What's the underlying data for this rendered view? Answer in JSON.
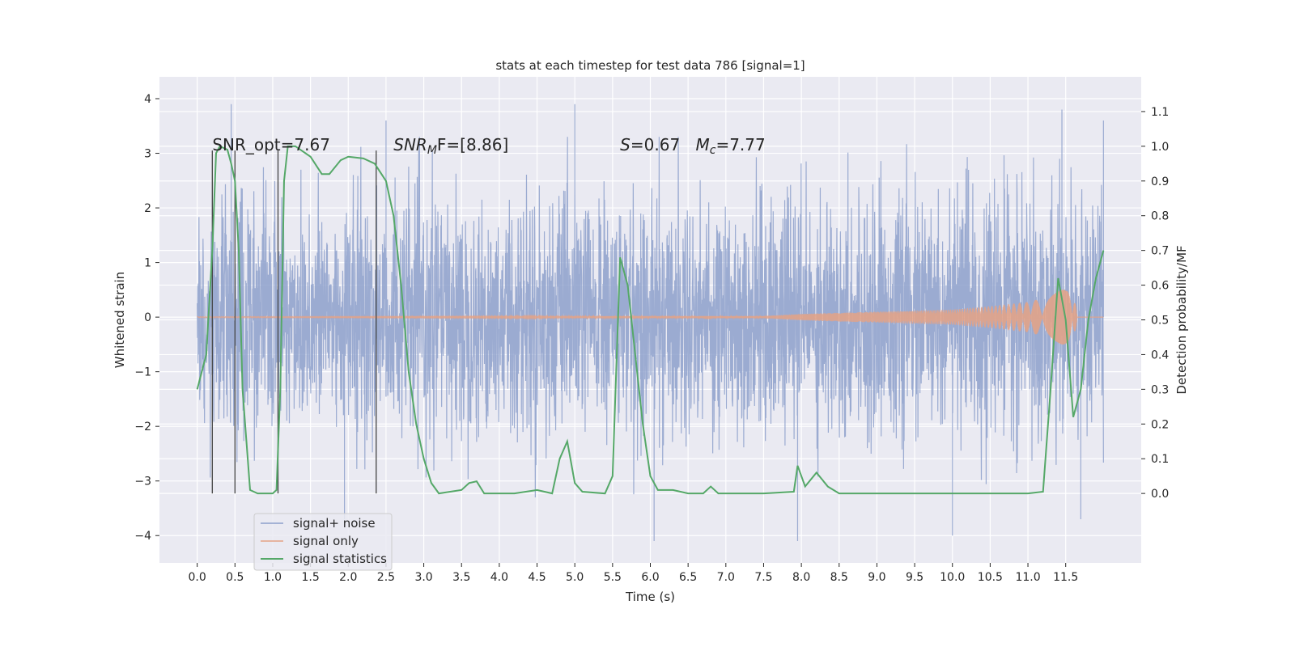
{
  "chart_data": {
    "type": "line",
    "title": "stats at each timestep for test data 786 [signal=1]",
    "xlabel": "Time (s)",
    "ylabel": "Whitened strain",
    "ylabel_right": "Detection probability/MF",
    "xlim": [
      -0.5,
      12.5
    ],
    "ylim": [
      -4.5,
      4.4
    ],
    "ylim_right": [
      -0.2,
      1.2
    ],
    "x_ticks": [
      "0.0",
      "0.5",
      "1.0",
      "1.5",
      "2.0",
      "2.5",
      "3.0",
      "3.5",
      "4.0",
      "4.5",
      "5.0",
      "5.5",
      "6.0",
      "6.5",
      "7.0",
      "7.5",
      "8.0",
      "8.5",
      "9.0",
      "9.5",
      "10.0",
      "10.5",
      "11.0",
      "11.5"
    ],
    "y_ticks": [
      "−4",
      "−3",
      "−2",
      "−1",
      "0",
      "1",
      "2",
      "3",
      "4"
    ],
    "y_ticks_right": [
      "0.0",
      "0.1",
      "0.2",
      "0.3",
      "0.4",
      "0.5",
      "0.6",
      "0.7",
      "0.8",
      "0.9",
      "1.0",
      "1.1"
    ],
    "grid": true,
    "legend_position": "lower-left",
    "annotations": {
      "snr_opt": "SNR_opt=7.67",
      "snr_mf_main": "SNR",
      "snr_mf_sub": "M",
      "snr_mf_rest": "F=[8.86]",
      "s_main": "S",
      "s_rest": "=0.67",
      "mc_main": "M",
      "mc_sub": "c",
      "mc_rest": "=7.77"
    },
    "vertical_markers_x": [
      0.2,
      0.5,
      1.07,
      2.37
    ],
    "series": [
      {
        "name": "signal+ noise",
        "color": "#8da0cb",
        "axis": "left",
        "bulk_envelope": [
          -1.8,
          1.8
        ],
        "notable_peaks": [
          [
            0.45,
            3.9
          ],
          [
            2.5,
            3.6
          ],
          [
            5.0,
            3.9
          ],
          [
            11.45,
            3.8
          ],
          [
            12.0,
            3.6
          ],
          [
            6.05,
            -4.1
          ],
          [
            7.95,
            -4.1
          ],
          [
            1.95,
            -3.7
          ],
          [
            10.0,
            -4.0
          ],
          [
            11.7,
            -3.7
          ]
        ],
        "x_range": [
          0.0,
          12.0
        ]
      },
      {
        "name": "signal only",
        "color": "#e5a285",
        "axis": "left",
        "envelope": [
          [
            0.0,
            0.01
          ],
          [
            7.5,
            0.02
          ],
          [
            8.0,
            0.06
          ],
          [
            9.0,
            0.1
          ],
          [
            10.0,
            0.14
          ],
          [
            10.5,
            0.2
          ],
          [
            11.0,
            0.28
          ],
          [
            11.3,
            0.38
          ],
          [
            11.5,
            0.55
          ],
          [
            11.6,
            0.9
          ],
          [
            11.65,
            0.0
          ]
        ]
      },
      {
        "name": "signal statistics",
        "color": "#55a868",
        "axis": "right",
        "points": [
          [
            0.0,
            0.3
          ],
          [
            0.12,
            0.4
          ],
          [
            0.2,
            0.7
          ],
          [
            0.25,
            0.98
          ],
          [
            0.3,
            1.0
          ],
          [
            0.4,
            0.99
          ],
          [
            0.45,
            0.95
          ],
          [
            0.5,
            0.9
          ],
          [
            0.55,
            0.7
          ],
          [
            0.6,
            0.3
          ],
          [
            0.7,
            0.01
          ],
          [
            0.8,
            0.0
          ],
          [
            1.0,
            0.0
          ],
          [
            1.05,
            0.01
          ],
          [
            1.1,
            0.3
          ],
          [
            1.15,
            0.9
          ],
          [
            1.2,
            1.0
          ],
          [
            1.3,
            1.0
          ],
          [
            1.5,
            0.97
          ],
          [
            1.65,
            0.92
          ],
          [
            1.75,
            0.92
          ],
          [
            1.9,
            0.96
          ],
          [
            2.0,
            0.97
          ],
          [
            2.2,
            0.965
          ],
          [
            2.35,
            0.95
          ],
          [
            2.5,
            0.9
          ],
          [
            2.6,
            0.8
          ],
          [
            2.7,
            0.6
          ],
          [
            2.8,
            0.35
          ],
          [
            2.9,
            0.2
          ],
          [
            3.0,
            0.1
          ],
          [
            3.1,
            0.03
          ],
          [
            3.2,
            0.0
          ],
          [
            3.5,
            0.01
          ],
          [
            3.6,
            0.03
          ],
          [
            3.7,
            0.035
          ],
          [
            3.8,
            0.0
          ],
          [
            4.2,
            0.0
          ],
          [
            4.5,
            0.01
          ],
          [
            4.7,
            0.0
          ],
          [
            4.8,
            0.1
          ],
          [
            4.9,
            0.15
          ],
          [
            5.0,
            0.03
          ],
          [
            5.1,
            0.005
          ],
          [
            5.4,
            0.0
          ],
          [
            5.5,
            0.05
          ],
          [
            5.6,
            0.68
          ],
          [
            5.7,
            0.6
          ],
          [
            5.8,
            0.4
          ],
          [
            5.9,
            0.2
          ],
          [
            6.0,
            0.05
          ],
          [
            6.1,
            0.01
          ],
          [
            6.3,
            0.01
          ],
          [
            6.5,
            0.0
          ],
          [
            6.7,
            0.0
          ],
          [
            6.8,
            0.02
          ],
          [
            6.9,
            0.0
          ],
          [
            7.5,
            0.0
          ],
          [
            7.9,
            0.005
          ],
          [
            7.95,
            0.08
          ],
          [
            8.05,
            0.02
          ],
          [
            8.2,
            0.06
          ],
          [
            8.35,
            0.02
          ],
          [
            8.5,
            0.0
          ],
          [
            10.5,
            0.0
          ],
          [
            11.0,
            0.0
          ],
          [
            11.2,
            0.005
          ],
          [
            11.3,
            0.3
          ],
          [
            11.4,
            0.62
          ],
          [
            11.5,
            0.5
          ],
          [
            11.6,
            0.22
          ],
          [
            11.7,
            0.3
          ],
          [
            11.8,
            0.5
          ],
          [
            11.9,
            0.62
          ],
          [
            12.0,
            0.7
          ]
        ]
      }
    ]
  }
}
